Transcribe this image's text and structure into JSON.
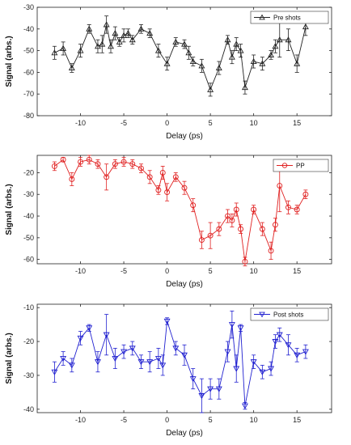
{
  "chart_data": [
    {
      "type": "line",
      "series": [
        {
          "name": "Pre shots",
          "color": "#222222",
          "marker": "triangle-up",
          "x": [
            -13,
            -12,
            -11,
            -10,
            -9,
            -8,
            -7.5,
            -7,
            -6.5,
            -6,
            -5.5,
            -5,
            -4.5,
            -4,
            -3,
            -2,
            -1,
            0,
            1,
            2,
            2.5,
            3,
            4,
            5,
            6,
            7,
            7.5,
            8,
            8.5,
            9,
            10,
            11,
            12,
            12.5,
            13,
            14,
            15,
            16
          ],
          "y": [
            -51,
            -49,
            -58,
            -50,
            -40,
            -48,
            -47,
            -38,
            -48,
            -42,
            -46,
            -43,
            -42,
            -45,
            -40,
            -42,
            -50,
            -56,
            -46,
            -47,
            -51,
            -55,
            -57,
            -68,
            -58,
            -45,
            -53,
            -47,
            -50,
            -67,
            -55,
            -56,
            -52,
            -48,
            -45,
            -45,
            -56,
            -39
          ],
          "err": [
            3,
            3,
            2,
            3,
            2,
            3,
            4,
            4,
            3,
            3,
            2,
            3,
            2,
            2,
            2,
            2,
            3,
            3,
            2,
            2,
            3,
            2,
            3,
            3,
            3,
            2,
            3,
            3,
            3,
            3,
            3,
            3,
            2,
            3,
            8,
            5,
            4,
            4
          ]
        }
      ],
      "xlabel": "Delay (ps)",
      "ylabel": "Signal (arbs.)",
      "xlim": [
        -15,
        19
      ],
      "ylim": [
        -80,
        -30
      ],
      "xticks": [
        -10,
        -5,
        0,
        5,
        10,
        15
      ],
      "yticks": [
        -30,
        -40,
        -50,
        -60,
        -70,
        -80
      ],
      "legend": "top-right"
    },
    {
      "type": "line",
      "series": [
        {
          "name": "PP",
          "color": "#e02020",
          "marker": "circle",
          "x": [
            -13,
            -12,
            -11,
            -10,
            -9,
            -8,
            -7,
            -6,
            -5,
            -4,
            -3,
            -2,
            -1,
            -0.5,
            0,
            1,
            2,
            3,
            4,
            5,
            6,
            7,
            7.5,
            8,
            8.5,
            9,
            10,
            11,
            12,
            12.5,
            13,
            14,
            15,
            16
          ],
          "y": [
            -17,
            -14,
            -23,
            -15,
            -14,
            -16,
            -22,
            -16,
            -15,
            -16,
            -18,
            -22,
            -28,
            -20,
            -29,
            -22,
            -27,
            -35,
            -51,
            -49,
            -46,
            -40,
            -42,
            -37,
            -46,
            -61,
            -37,
            -46,
            -56,
            -44,
            -26,
            -36,
            -37,
            -30
          ],
          "err": [
            2,
            1,
            3,
            2,
            2,
            2,
            6,
            2,
            2,
            2,
            2,
            3,
            2,
            3,
            4,
            2,
            3,
            3,
            4,
            6,
            3,
            3,
            3,
            3,
            2,
            2,
            2,
            3,
            4,
            3,
            12,
            3,
            2,
            2
          ]
        }
      ],
      "xlabel": "Delay (ps)",
      "ylabel": "Signal (arbs.)",
      "xlim": [
        -15,
        19
      ],
      "ylim": [
        -62,
        -12
      ],
      "xticks": [
        -10,
        -5,
        0,
        5,
        10,
        15
      ],
      "yticks": [
        -20,
        -30,
        -40,
        -50,
        -60
      ],
      "legend": "top-right"
    },
    {
      "type": "line",
      "series": [
        {
          "name": "Post shots",
          "color": "#2020d0",
          "marker": "triangle-down",
          "x": [
            -13,
            -12,
            -11,
            -10,
            -9,
            -8,
            -7,
            -6,
            -5,
            -4,
            -3,
            -2,
            -1,
            -0.5,
            0,
            1,
            2,
            3,
            4,
            5,
            6,
            7,
            7.5,
            8,
            8.5,
            9,
            10,
            11,
            12,
            12.5,
            13,
            14,
            15,
            16
          ],
          "y": [
            -29,
            -25,
            -27,
            -19,
            -16,
            -26,
            -18,
            -25,
            -23,
            -22,
            -26,
            -26,
            -25,
            -27,
            -14,
            -22,
            -24,
            -31,
            -36,
            -34,
            -34,
            -23,
            -15,
            -28,
            -16,
            -39,
            -26,
            -29,
            -28,
            -20,
            -18,
            -21,
            -24,
            -23
          ],
          "err": [
            3,
            2,
            2,
            2,
            1,
            3,
            6,
            3,
            2,
            2,
            2,
            3,
            3,
            3,
            1,
            2,
            3,
            3,
            5,
            3,
            3,
            3,
            4,
            4,
            1,
            1,
            2,
            2,
            2,
            2,
            2,
            3,
            2,
            2
          ]
        }
      ],
      "xlabel": "Delay (ps)",
      "ylabel": "Signal (arbs.)",
      "xlim": [
        -15,
        19
      ],
      "ylim": [
        -41,
        -9
      ],
      "xticks": [
        -10,
        -5,
        0,
        5,
        10,
        15
      ],
      "yticks": [
        -10,
        -20,
        -30,
        -40
      ],
      "legend": "top-right"
    }
  ]
}
